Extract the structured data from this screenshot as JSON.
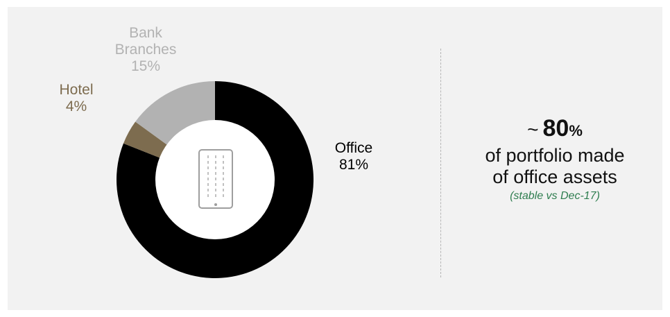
{
  "colors": {
    "office": "#000000",
    "hotel": "#7d6c4f",
    "bank_branches": "#b2b2b2",
    "panel_bg": "#f2f2f2",
    "note": "#2e7d4f",
    "center": "#ffffff",
    "icon": "#9e9e9e"
  },
  "chart_data": {
    "type": "pie",
    "style": "donut",
    "title": "",
    "center_icon": "office-building-icon",
    "slices": [
      {
        "name": "Office",
        "value": 81,
        "value_label": "81%",
        "color": "#000000"
      },
      {
        "name": "Hotel",
        "value": 4,
        "value_label": "4%",
        "color": "#7d6c4f"
      },
      {
        "name": "Bank Branches",
        "value": 15,
        "value_label": "15%",
        "color": "#b2b2b2"
      }
    ]
  },
  "labels": {
    "bank_line1": "Bank",
    "bank_line2": "Branches",
    "bank_pct": "15%",
    "hotel_name": "Hotel",
    "hotel_pct": "4%",
    "office_name": "Office",
    "office_pct": "81%"
  },
  "summary": {
    "tilde": "~",
    "value": "80",
    "unit": "%",
    "line1": "of portfolio made",
    "line2": "of office assets",
    "note": "(stable vs Dec-17)"
  }
}
